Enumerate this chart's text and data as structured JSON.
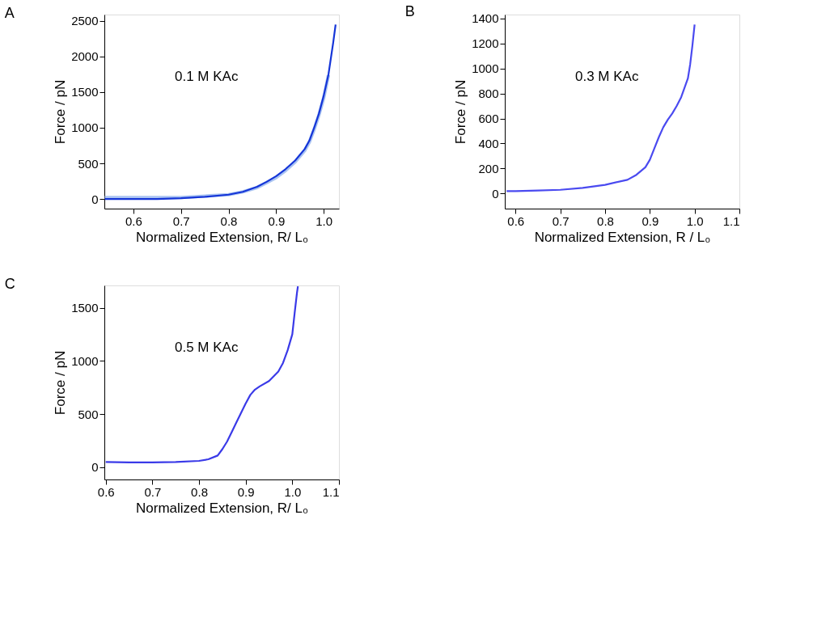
{
  "chart_data": [
    {
      "type": "line",
      "title": "A",
      "annotations": [
        "0.1 M KAc"
      ],
      "xlabel": "Normalized Extension, R/ L₀",
      "ylabel": "Force / pN",
      "xlim": [
        0.539,
        1.032
      ],
      "ylim": [
        -136,
        2590
      ],
      "xticks": [
        {
          "value": 0.6,
          "label": "0.6"
        },
        {
          "value": 0.7,
          "label": "0.7"
        },
        {
          "value": 0.8,
          "label": "0.8"
        },
        {
          "value": 0.9,
          "label": "0.9"
        },
        {
          "value": 1.0,
          "label": "1.0"
        }
      ],
      "yticks": [
        0,
        500,
        1000,
        1500,
        2000,
        2500
      ],
      "marker": "none",
      "line_style": "solid",
      "series": [
        {
          "color": "#1535d8",
          "x": [
            0.54,
            0.6,
            0.65,
            0.7,
            0.75,
            0.8,
            0.83,
            0.86,
            0.88,
            0.9,
            0.92,
            0.94,
            0.96,
            0.97,
            0.98,
            0.99,
            1.0,
            1.01,
            1.02,
            1.025
          ],
          "values": [
            0,
            0,
            0,
            10,
            30,
            60,
            100,
            170,
            240,
            320,
            420,
            540,
            700,
            820,
            1000,
            1200,
            1450,
            1750,
            2200,
            2450
          ]
        },
        {
          "color": "#aac4f2",
          "x": [
            0.54,
            0.6,
            0.65,
            0.7,
            0.75,
            0.8,
            0.83,
            0.86,
            0.88,
            0.9,
            0.92,
            0.94,
            0.96,
            0.97,
            0.98,
            0.99,
            1.0,
            1.01
          ],
          "values": [
            20,
            20,
            20,
            20,
            40,
            60,
            100,
            160,
            230,
            300,
            400,
            520,
            680,
            800,
            980,
            1180,
            1420,
            1740
          ]
        }
      ]
    },
    {
      "type": "line",
      "title": "B",
      "annotations": [
        "0.3 M KAc"
      ],
      "xlabel": "Normalized Extension, R / L₀",
      "ylabel": "Force / pN",
      "xlim": [
        0.576,
        1.1
      ],
      "ylim": [
        -120,
        1430
      ],
      "xticks": [
        {
          "value": 0.6,
          "label": "0.6"
        },
        {
          "value": 0.7,
          "label": "0.7"
        },
        {
          "value": 0.8,
          "label": "0.8"
        },
        {
          "value": 0.9,
          "label": "0.9"
        },
        {
          "value": 1.0,
          "label": "1.0"
        },
        {
          "value": 1.1,
          "label": "1.1"
        }
      ],
      "yticks": [
        0,
        200,
        400,
        600,
        800,
        1000,
        1200,
        1400
      ],
      "marker": "none",
      "line_style": "solid",
      "series": [
        {
          "color": "#4a4af0",
          "x": [
            0.58,
            0.6,
            0.65,
            0.7,
            0.75,
            0.8,
            0.85,
            0.87,
            0.89,
            0.9,
            0.91,
            0.92,
            0.93,
            0.94,
            0.95,
            0.96,
            0.97,
            0.98,
            0.985,
            0.99,
            0.995,
            1.0
          ],
          "values": [
            20,
            20,
            25,
            30,
            45,
            70,
            110,
            150,
            210,
            270,
            360,
            450,
            530,
            590,
            640,
            700,
            770,
            870,
            920,
            1030,
            1180,
            1350
          ]
        }
      ]
    },
    {
      "type": "line",
      "title": "C",
      "annotations": [
        "0.5 M KAc"
      ],
      "xlabel": "Normalized Extension, R/ L₀",
      "ylabel": "Force / pN",
      "xlim": [
        0.597,
        1.1
      ],
      "ylim": [
        -115,
        1709
      ],
      "xticks": [
        {
          "value": 0.6,
          "label": "0.6"
        },
        {
          "value": 0.7,
          "label": "0.7"
        },
        {
          "value": 0.8,
          "label": "0.8"
        },
        {
          "value": 0.9,
          "label": "0.9"
        },
        {
          "value": 1.0,
          "label": "1.0"
        },
        {
          "value": 1.1,
          "label": "1.1"
        }
      ],
      "yticks": [
        0,
        500,
        1000,
        1500
      ],
      "marker": "none",
      "line_style": "solid",
      "series": [
        {
          "color": "#3a3ae8",
          "x": [
            0.6,
            0.65,
            0.7,
            0.75,
            0.8,
            0.82,
            0.84,
            0.85,
            0.86,
            0.87,
            0.88,
            0.89,
            0.9,
            0.91,
            0.92,
            0.93,
            0.95,
            0.97,
            0.98,
            0.99,
            1.0,
            1.005,
            1.01,
            1.012
          ],
          "values": [
            50,
            45,
            45,
            50,
            60,
            75,
            110,
            170,
            240,
            330,
            420,
            510,
            600,
            680,
            730,
            760,
            810,
            900,
            980,
            1100,
            1250,
            1450,
            1640,
            1700
          ]
        }
      ]
    }
  ]
}
